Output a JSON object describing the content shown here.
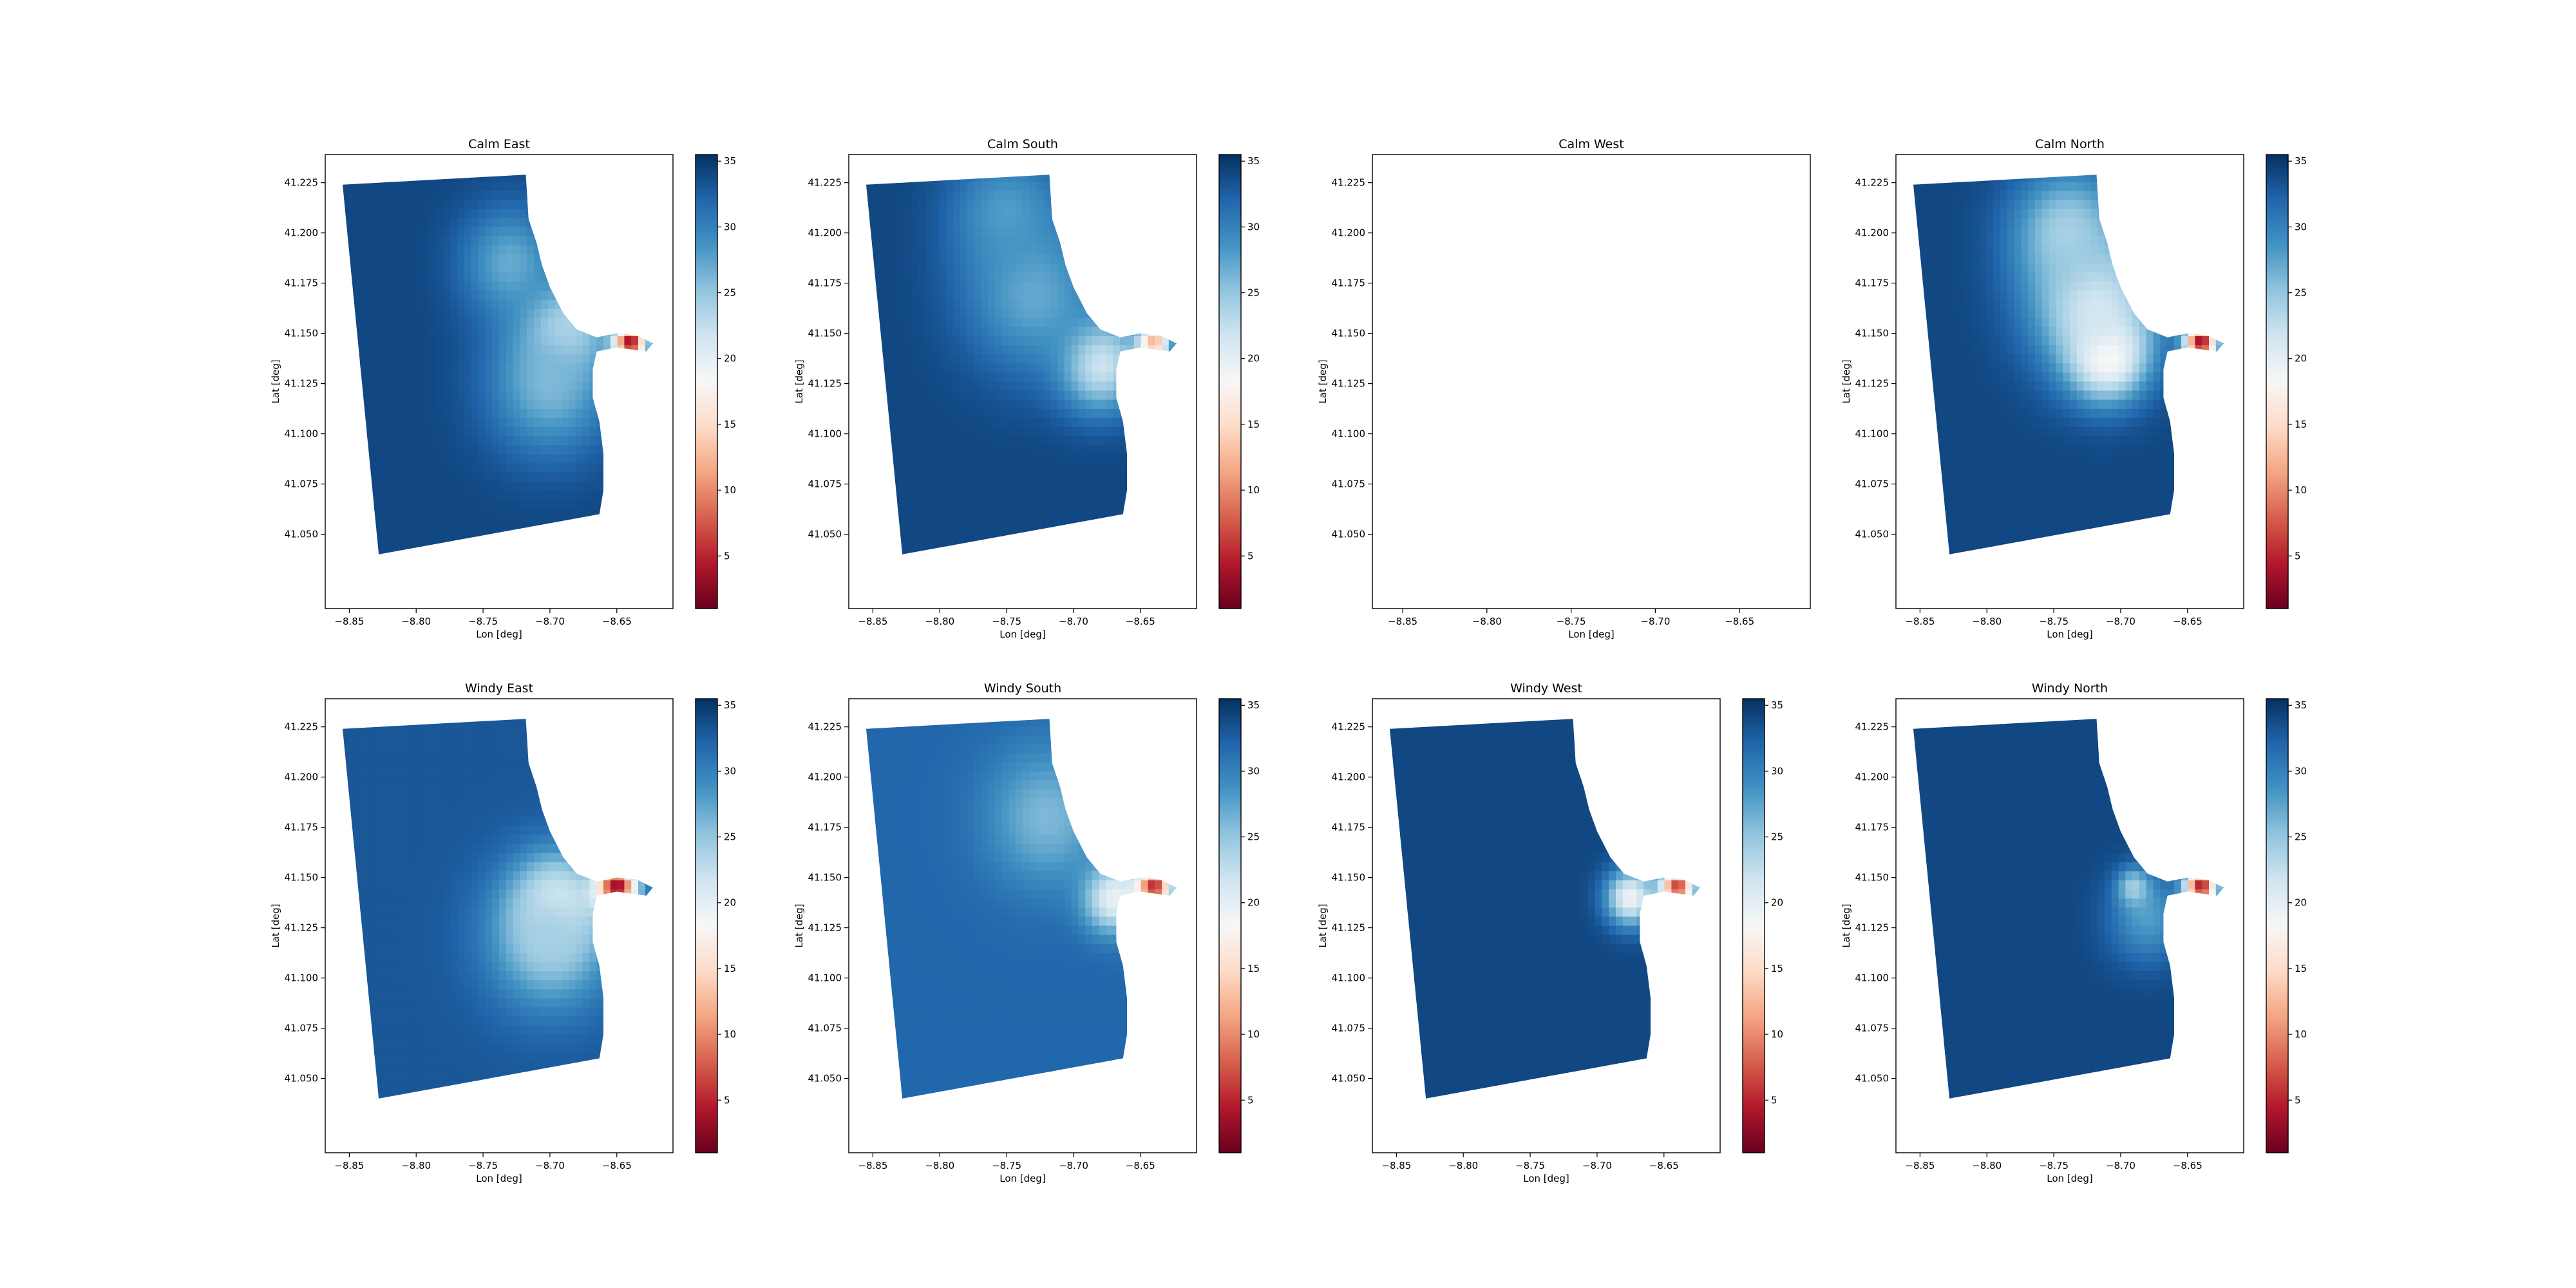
{
  "chart_data": {
    "type": "heatmap",
    "grid": {
      "rows": 2,
      "cols": 4
    },
    "colormap": "RdBu",
    "colormap_stops": [
      "#67001f",
      "#b2182b",
      "#d6604d",
      "#f4a582",
      "#fddbc7",
      "#f7f7f7",
      "#d1e5f0",
      "#92c5de",
      "#4393c3",
      "#2166ac",
      "#053061"
    ],
    "xlabel": "Lon [deg]",
    "ylabel": "Lat [deg]",
    "x_ticks": [
      "−8.85",
      "−8.80",
      "−8.75",
      "−8.70",
      "−8.65"
    ],
    "x_tick_values": [
      -8.85,
      -8.8,
      -8.75,
      -8.7,
      -8.65
    ],
    "y_ticks": [
      "41.050",
      "41.075",
      "41.100",
      "41.125",
      "41.150",
      "41.175",
      "41.200",
      "41.225"
    ],
    "y_tick_values": [
      41.05,
      41.075,
      41.1,
      41.125,
      41.15,
      41.175,
      41.2,
      41.225
    ],
    "colorbar_ticks": [
      "5",
      "10",
      "15",
      "20",
      "25",
      "30",
      "35"
    ],
    "colorbar_tick_values": [
      5,
      10,
      15,
      20,
      25,
      30,
      35
    ],
    "colorbar_range": [
      1,
      35.5
    ],
    "domain_outline_lonlat": [
      [
        -8.855,
        41.224
      ],
      [
        -8.718,
        41.229
      ],
      [
        -8.716,
        41.207
      ],
      [
        -8.71,
        41.195
      ],
      [
        -8.706,
        41.184
      ],
      [
        -8.7,
        41.173
      ],
      [
        -8.69,
        41.16
      ],
      [
        -8.68,
        41.152
      ],
      [
        -8.665,
        41.148
      ],
      [
        -8.65,
        41.15
      ],
      [
        -8.635,
        41.149
      ],
      [
        -8.623,
        41.145
      ],
      [
        -8.628,
        41.141
      ],
      [
        -8.65,
        41.143
      ],
      [
        -8.665,
        41.141
      ],
      [
        -8.668,
        41.132
      ],
      [
        -8.668,
        41.118
      ],
      [
        -8.663,
        41.106
      ],
      [
        -8.66,
        41.09
      ],
      [
        -8.66,
        41.072
      ],
      [
        -8.663,
        41.06
      ],
      [
        -8.828,
        41.04
      ]
    ],
    "subplots": [
      {
        "title": "Calm East",
        "has_data": true,
        "colorbar": true,
        "base": 34,
        "blobs": [
          {
            "lon": -8.69,
            "lat": 41.15,
            "r": 0.03,
            "v": 21
          },
          {
            "lon": -8.7,
            "lat": 41.125,
            "r": 0.045,
            "v": 26
          },
          {
            "lon": -8.73,
            "lat": 41.185,
            "r": 0.035,
            "v": 27
          },
          {
            "lon": -8.64,
            "lat": 41.145,
            "r": 0.012,
            "v": 3
          }
        ]
      },
      {
        "title": "Calm South",
        "has_data": true,
        "colorbar": true,
        "base": 34,
        "blobs": [
          {
            "lon": -8.68,
            "lat": 41.135,
            "r": 0.03,
            "v": 21
          },
          {
            "lon": -8.73,
            "lat": 41.17,
            "r": 0.05,
            "v": 27
          },
          {
            "lon": -8.75,
            "lat": 41.21,
            "r": 0.04,
            "v": 28
          },
          {
            "lon": -8.64,
            "lat": 41.145,
            "r": 0.012,
            "v": 12
          }
        ]
      },
      {
        "title": "Calm West",
        "has_data": false,
        "colorbar": false
      },
      {
        "title": "Calm North",
        "has_data": true,
        "colorbar": true,
        "base": 34,
        "blobs": [
          {
            "lon": -8.71,
            "lat": 41.14,
            "r": 0.028,
            "v": 15
          },
          {
            "lon": -8.72,
            "lat": 41.165,
            "r": 0.045,
            "v": 21
          },
          {
            "lon": -8.74,
            "lat": 41.2,
            "r": 0.04,
            "v": 24
          },
          {
            "lon": -8.64,
            "lat": 41.145,
            "r": 0.012,
            "v": 3
          }
        ]
      },
      {
        "title": "Windy East",
        "has_data": true,
        "colorbar": true,
        "base": 33,
        "blobs": [
          {
            "lon": -8.695,
            "lat": 41.135,
            "r": 0.03,
            "v": 17
          },
          {
            "lon": -8.7,
            "lat": 41.12,
            "r": 0.045,
            "v": 24
          },
          {
            "lon": -8.65,
            "lat": 41.145,
            "r": 0.015,
            "v": 3
          }
        ]
      },
      {
        "title": "Windy South",
        "has_data": true,
        "colorbar": true,
        "base": 32,
        "blobs": [
          {
            "lon": -8.67,
            "lat": 41.14,
            "r": 0.022,
            "v": 19
          },
          {
            "lon": -8.72,
            "lat": 41.18,
            "r": 0.045,
            "v": 26
          },
          {
            "lon": -8.64,
            "lat": 41.145,
            "r": 0.013,
            "v": 5
          }
        ]
      },
      {
        "title": "Windy West",
        "has_data": true,
        "colorbar": true,
        "base": 34,
        "blobs": [
          {
            "lon": -8.675,
            "lat": 41.14,
            "r": 0.018,
            "v": 19
          },
          {
            "lon": -8.64,
            "lat": 41.145,
            "r": 0.013,
            "v": 6
          }
        ]
      },
      {
        "title": "Windy North",
        "has_data": true,
        "colorbar": true,
        "base": 34,
        "blobs": [
          {
            "lon": -8.68,
            "lat": 41.13,
            "r": 0.028,
            "v": 28
          },
          {
            "lon": -8.69,
            "lat": 41.145,
            "r": 0.012,
            "v": 24
          },
          {
            "lon": -8.64,
            "lat": 41.145,
            "r": 0.012,
            "v": 4
          }
        ]
      }
    ]
  }
}
